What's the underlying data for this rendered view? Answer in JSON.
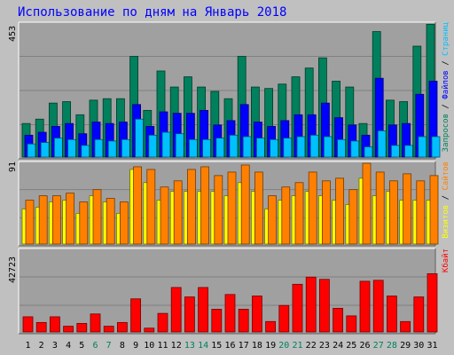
{
  "title": "Использование по дням на Январь 2018",
  "colors": {
    "background": "#c0c0c0",
    "panel": "#a0a0a0",
    "title": "#0000ff",
    "hits": "#00805c",
    "files": "#0000ff",
    "pages": "#00c0ff",
    "visits": "#ffff00",
    "sites": "#ff8000",
    "kbytes": "#ff0000",
    "weekend_label": "#00805c",
    "weekday_label": "#000000"
  },
  "chart_data": [
    {
      "type": "bar",
      "name": "top",
      "ymax_label": "453",
      "ylim": [
        0,
        453
      ],
      "legend": [
        {
          "text": "Запросов",
          "color": "#00805c"
        },
        {
          "text": " / ",
          "color": "#000000"
        },
        {
          "text": "Файлов",
          "color": "#0000ff"
        },
        {
          "text": " / ",
          "color": "#000000"
        },
        {
          "text": "Страниц",
          "color": "#00c0ff"
        }
      ],
      "categories": [
        "1",
        "2",
        "3",
        "4",
        "5",
        "6",
        "7",
        "8",
        "9",
        "10",
        "11",
        "12",
        "13",
        "14",
        "15",
        "16",
        "17",
        "18",
        "19",
        "20",
        "21",
        "22",
        "23",
        "24",
        "25",
        "26",
        "27",
        "28",
        "29",
        "30",
        "31"
      ],
      "series": [
        {
          "name": "Запросов",
          "values": [
            115,
            130,
            185,
            190,
            145,
            195,
            200,
            200,
            345,
            160,
            295,
            240,
            275,
            240,
            225,
            200,
            345,
            240,
            235,
            250,
            275,
            305,
            340,
            260,
            240,
            115,
            430,
            195,
            190,
            380,
            455
          ]
        },
        {
          "name": "Файлов",
          "values": [
            75,
            85,
            105,
            115,
            80,
            120,
            115,
            120,
            180,
            105,
            155,
            150,
            150,
            160,
            110,
            125,
            180,
            120,
            105,
            125,
            145,
            145,
            185,
            135,
            110,
            75,
            270,
            110,
            115,
            215,
            260
          ]
        },
        {
          "name": "Страниц",
          "values": [
            45,
            50,
            65,
            60,
            40,
            60,
            55,
            60,
            130,
            75,
            85,
            80,
            60,
            60,
            65,
            75,
            70,
            65,
            60,
            65,
            70,
            75,
            70,
            60,
            55,
            35,
            90,
            40,
            40,
            70,
            70
          ]
        }
      ]
    },
    {
      "type": "bar",
      "name": "middle",
      "ymax_label": "91",
      "ylim": [
        0,
        91
      ],
      "legend": [
        {
          "text": "Визитов",
          "color": "#ffff00"
        },
        {
          "text": " / ",
          "color": "#000000"
        },
        {
          "text": "Сайтов",
          "color": "#ff8000"
        }
      ],
      "categories": [
        "1",
        "2",
        "3",
        "4",
        "5",
        "6",
        "7",
        "8",
        "9",
        "10",
        "11",
        "12",
        "13",
        "14",
        "15",
        "16",
        "17",
        "18",
        "19",
        "20",
        "21",
        "22",
        "23",
        "24",
        "25",
        "26",
        "27",
        "28",
        "29",
        "30",
        "31"
      ],
      "series": [
        {
          "name": "Визитов",
          "values": [
            40,
            42,
            48,
            50,
            35,
            55,
            48,
            35,
            85,
            70,
            50,
            60,
            60,
            60,
            60,
            55,
            70,
            60,
            40,
            50,
            55,
            60,
            55,
            50,
            45,
            75,
            55,
            60,
            50,
            50,
            50
          ]
        },
        {
          "name": "Сайтов",
          "values": [
            50,
            55,
            55,
            58,
            48,
            62,
            52,
            48,
            88,
            85,
            65,
            72,
            85,
            88,
            78,
            82,
            90,
            82,
            55,
            65,
            70,
            82,
            72,
            75,
            62,
            92,
            82,
            72,
            80,
            72,
            78
          ]
        }
      ]
    },
    {
      "type": "bar",
      "name": "bottom",
      "ymax_label": "42723",
      "ylim": [
        0,
        42723
      ],
      "legend": [
        {
          "text": "Кбайт",
          "color": "#ff0000"
        }
      ],
      "categories": [
        "1",
        "2",
        "3",
        "4",
        "5",
        "6",
        "7",
        "8",
        "9",
        "10",
        "11",
        "12",
        "13",
        "14",
        "15",
        "16",
        "17",
        "18",
        "19",
        "20",
        "21",
        "22",
        "23",
        "24",
        "25",
        "26",
        "27",
        "28",
        "29",
        "30",
        "31"
      ],
      "weekend_days": [
        "6",
        "7",
        "13",
        "14",
        "20",
        "21",
        "27",
        "28"
      ],
      "series": [
        {
          "name": "Кбайт",
          "values": [
            8000,
            5000,
            8000,
            3000,
            4500,
            9500,
            3000,
            5000,
            17500,
            2000,
            9800,
            23500,
            18500,
            23500,
            12000,
            19800,
            12000,
            19000,
            5500,
            14000,
            25200,
            29000,
            27800,
            12500,
            8500,
            26800,
            27300,
            19000,
            5500,
            18500,
            30800
          ]
        }
      ]
    }
  ]
}
